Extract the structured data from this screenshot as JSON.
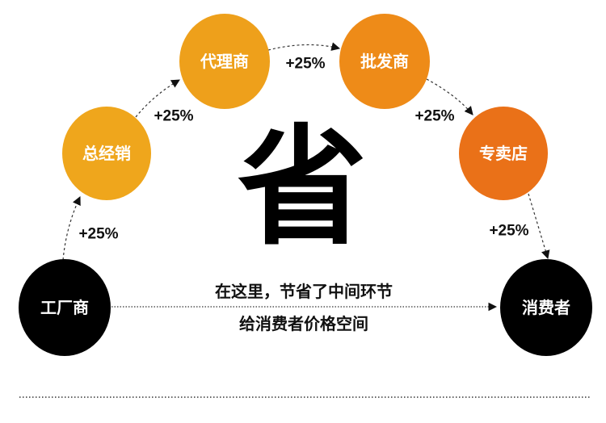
{
  "nodes": {
    "factory": {
      "label": "工厂商",
      "color": "#000000"
    },
    "general_distributor": {
      "label": "总经销",
      "color": "#efa61c"
    },
    "agent": {
      "label": "代理商",
      "color": "#eea01b"
    },
    "wholesaler": {
      "label": "批发商",
      "color": "#ee8b18"
    },
    "store": {
      "label": "专卖店",
      "color": "#ea7118"
    },
    "consumer": {
      "label": "消费者",
      "color": "#000000"
    }
  },
  "markups": [
    "+25%",
    "+25%",
    "+25%",
    "+25%",
    "+25%"
  ],
  "center_character": "省",
  "message": {
    "line1": "在这里，节省了中间环节",
    "line2": "给消费者价格空间"
  }
}
